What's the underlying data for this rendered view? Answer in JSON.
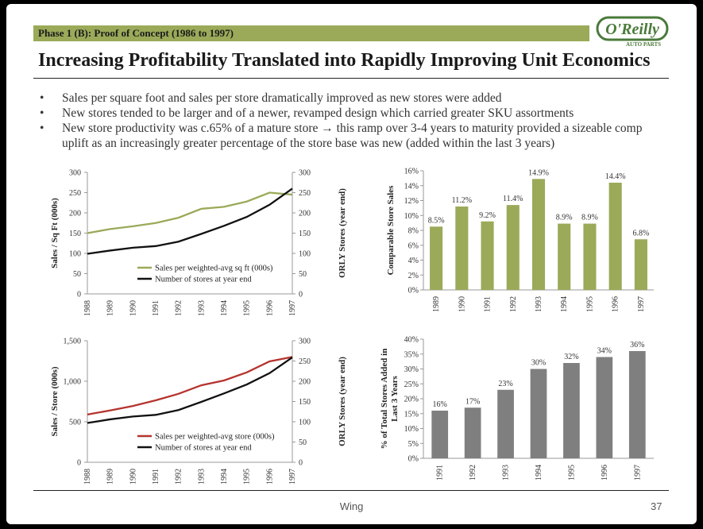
{
  "header": {
    "phase_label": "Phase 1 (B): Proof of Concept (1986 to 1997)",
    "logo_text": "O'Reilly",
    "logo_subtext": "AUTO PARTS",
    "title": "Increasing Profitability Translated into Rapidly Improving Unit Economics"
  },
  "bullets": [
    "Sales per square foot and sales per store dramatically improved as new stores were added",
    "New stores tended to be larger and of a newer, revamped design which carried greater SKU assortments",
    "New store productivity was c.65% of a mature store → this ramp over 3-4 years to maturity provided a sizeable comp uplift as an increasingly greater percentage of the store base was new (added within the last 3 years)"
  ],
  "footer": {
    "center_text": "Wing",
    "page_number": "37"
  },
  "colors": {
    "green": "#9aaa59",
    "red": "#b5332e",
    "black": "#111111",
    "gray": "#7f7f7f",
    "phase_bar": "#9aaa59"
  },
  "chart_data": [
    {
      "type": "line",
      "categories": [
        "1988",
        "1989",
        "1990",
        "1991",
        "1992",
        "1993",
        "1994",
        "1995",
        "1996",
        "1997"
      ],
      "ylabel": "Sales / Sq Ft (000s)",
      "y2label": "ORLY Stores (year end)",
      "ylim": [
        0,
        300
      ],
      "y2lim": [
        0,
        300
      ],
      "yticks": [
        "0",
        "50",
        "100",
        "150",
        "200",
        "250",
        "300"
      ],
      "y2ticks": [
        "0",
        "50",
        "100",
        "150",
        "200",
        "250",
        "300"
      ],
      "series": [
        {
          "name": "Sales per weighted-avg sq ft (000s)",
          "axis": "left",
          "color": "#9aaa59",
          "values": [
            150,
            160,
            167,
            175,
            188,
            210,
            215,
            228,
            250,
            245
          ]
        },
        {
          "name": "Number of stores at year end",
          "axis": "right",
          "color": "#111111",
          "values": [
            99,
            107,
            114,
            118,
            129,
            148,
            168,
            190,
            220,
            260
          ]
        }
      ],
      "legend": "inside-bottom"
    },
    {
      "type": "bar",
      "categories": [
        "1989",
        "1990",
        "1991",
        "1992",
        "1993",
        "1994",
        "1995",
        "1996",
        "1997"
      ],
      "values": [
        8.5,
        11.2,
        9.2,
        11.4,
        14.9,
        8.9,
        8.9,
        14.4,
        6.8
      ],
      "labels": [
        "8.5%",
        "11.2%",
        "9.2%",
        "11.4%",
        "14.9%",
        "8.9%",
        "8.9%",
        "14.4%",
        "6.8%"
      ],
      "ylabel": "Comparable Store Sales",
      "ylim": [
        0,
        16
      ],
      "yticks": [
        "0%",
        "2%",
        "4%",
        "6%",
        "8%",
        "10%",
        "12%",
        "14%",
        "16%"
      ],
      "color": "#9aaa59"
    },
    {
      "type": "line",
      "categories": [
        "1988",
        "1989",
        "1990",
        "1991",
        "1992",
        "1993",
        "1994",
        "1995",
        "1996",
        "1997"
      ],
      "ylabel": "Sales / Store (000s)",
      "y2label": "ORLY Stores (year end)",
      "ylim": [
        0,
        1500
      ],
      "y2lim": [
        0,
        300
      ],
      "yticks": [
        "0",
        "500",
        "1,000",
        "1,500"
      ],
      "y2ticks": [
        "0",
        "50",
        "100",
        "150",
        "200",
        "250",
        "300"
      ],
      "series": [
        {
          "name": "Sales per weighted-avg store (000s)",
          "axis": "left",
          "color": "#b5332e",
          "values": [
            590,
            640,
            695,
            765,
            845,
            950,
            1010,
            1110,
            1245,
            1300
          ]
        },
        {
          "name": "Number of stores at year end",
          "axis": "right",
          "color": "#111111",
          "values": [
            97,
            106,
            113,
            117,
            129,
            149,
            170,
            192,
            220,
            259
          ]
        }
      ],
      "legend": "inside-bottom"
    },
    {
      "type": "bar",
      "categories": [
        "1991",
        "1992",
        "1993",
        "1994",
        "1995",
        "1996",
        "1997"
      ],
      "values": [
        16,
        17,
        23,
        30,
        32,
        34,
        36
      ],
      "labels": [
        "16%",
        "17%",
        "23%",
        "30%",
        "32%",
        "34%",
        "36%"
      ],
      "ylabel": "% of Total Stores Added in Last 3 Years",
      "ylim": [
        0,
        40
      ],
      "yticks": [
        "0%",
        "5%",
        "10%",
        "15%",
        "20%",
        "25%",
        "30%",
        "35%",
        "40%"
      ],
      "color": "#7f7f7f"
    }
  ]
}
